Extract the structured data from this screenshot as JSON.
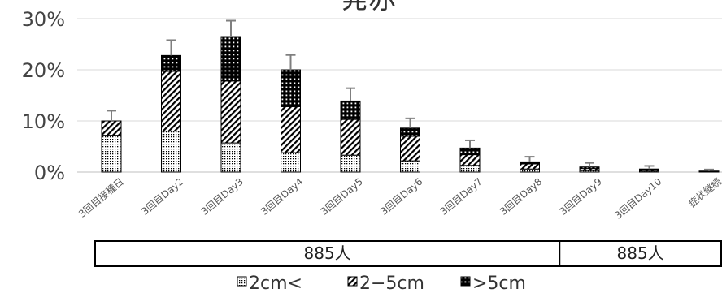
{
  "chart_data": {
    "type": "bar",
    "stacked": true,
    "title": "発赤",
    "categories": [
      "3回目接種日",
      "3回目Day2",
      "3回目Day3",
      "3回目Day4",
      "3回目Day5",
      "3回目Day6",
      "3回目Day7",
      "3回目Day8",
      "3回目Day9",
      "3回目Day10",
      "症状継続"
    ],
    "series": [
      {
        "name": "2cm<",
        "pattern": "dots-fine",
        "values": [
          7.2,
          8.0,
          5.7,
          3.8,
          3.3,
          2.2,
          1.3,
          0.6,
          0.3,
          0.2,
          0.1
        ]
      },
      {
        "name": "2−5cm",
        "pattern": "diagonal",
        "values": [
          2.8,
          11.7,
          12.1,
          9.0,
          7.0,
          4.8,
          2.1,
          1.0,
          0.4,
          0.2,
          0.1
        ]
      },
      {
        "name": ">5cm",
        "pattern": "dots-dark",
        "values": [
          0.0,
          3.1,
          8.7,
          7.2,
          3.6,
          1.6,
          1.3,
          0.4,
          0.3,
          0.2,
          0.0
        ]
      }
    ],
    "error_top": [
      12.0,
      25.8,
      29.6,
      22.9,
      16.4,
      10.5,
      6.2,
      3.0,
      1.8,
      1.2,
      0.5
    ],
    "ylim": [
      0,
      30
    ],
    "yticks": [
      "0%",
      "10%",
      "20%",
      "30%"
    ],
    "ytick_values": [
      0,
      10,
      20,
      30
    ],
    "grid": true,
    "legend_position": "bottom",
    "groups": [
      {
        "label": "885人",
        "span": [
          0,
          7
        ]
      },
      {
        "label": "885人",
        "span": [
          8,
          10
        ]
      }
    ],
    "colors": {
      "ink": "#000000",
      "grid": "#d9d9d9",
      "error": "#7f7f7f",
      "axis": "#bfbfbf"
    }
  }
}
